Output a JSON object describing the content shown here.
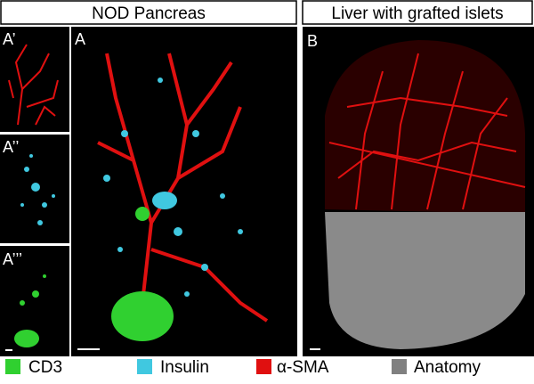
{
  "header": {
    "left_title": "NOD Pancreas",
    "right_title": "Liver with grafted islets"
  },
  "panels": {
    "a_prime": "A’",
    "a_double_prime": "A’’",
    "a_triple_prime": "A’’’",
    "a": "A",
    "b": "B"
  },
  "legend": [
    "CD3",
    "Insulin",
    "α-SMA",
    "Anatomy"
  ]
}
